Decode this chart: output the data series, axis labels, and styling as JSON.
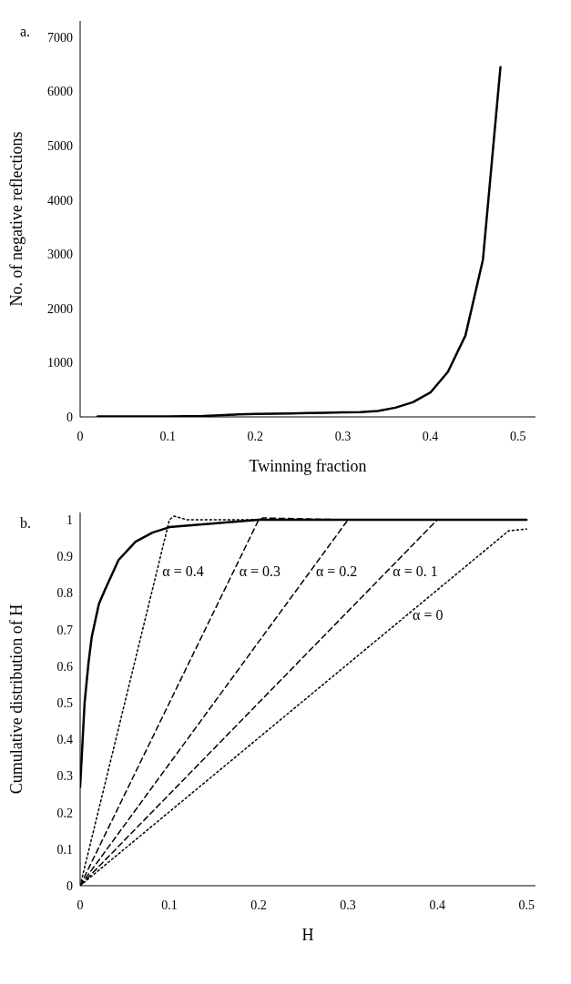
{
  "chart_data": [
    {
      "type": "line",
      "annotations": [
        "a."
      ],
      "xlabel": "Twinning fraction",
      "ylabel": "No. of negative reflections",
      "x": [
        0.02,
        0.04,
        0.06,
        0.08,
        0.1,
        0.12,
        0.14,
        0.16,
        0.18,
        0.2,
        0.22,
        0.24,
        0.26,
        0.28,
        0.3,
        0.32,
        0.34,
        0.36,
        0.38,
        0.4,
        0.42,
        0.44,
        0.46,
        0.48
      ],
      "values": [
        10,
        10,
        10,
        10,
        10,
        12,
        15,
        30,
        45,
        55,
        60,
        65,
        70,
        75,
        85,
        90,
        110,
        170,
        270,
        450,
        830,
        1500,
        2900,
        6450
      ],
      "color": "#000000",
      "xlim": [
        0,
        0.52
      ],
      "xticks": [
        0,
        0.1,
        0.2,
        0.3,
        0.4,
        0.5
      ],
      "ylim": [
        0,
        7300
      ],
      "yticks": [
        0,
        1000,
        2000,
        3000,
        4000,
        5000,
        6000,
        7000
      ],
      "grid": false,
      "line_style": "solid"
    },
    {
      "type": "line",
      "annotations": [
        "b."
      ],
      "xlabel": "H",
      "ylabel": "Cumulative distribution of H",
      "series": [
        {
          "color": "#000000",
          "line_style": "solid",
          "x": [
            0,
            0.005,
            0.0094,
            0.013,
            0.021,
            0.028,
            0.043,
            0.062,
            0.081,
            0.1,
            0.15,
            0.2,
            0.5
          ],
          "values": [
            0.27,
            0.5,
            0.61,
            0.68,
            0.77,
            0.81,
            0.89,
            0.94,
            0.965,
            0.98,
            0.99,
            1,
            1
          ]
        },
        {
          "name": "α = 0.4",
          "color": "#000000",
          "line_style": "dotted",
          "x": [
            0,
            0.1,
            0.105,
            0.12,
            0.2
          ],
          "values": [
            0,
            1,
            1.01,
            1,
            1
          ]
        },
        {
          "name": "α = 0.3",
          "color": "#000000",
          "line_style": "dashed",
          "x": [
            0,
            0.2,
            0.205,
            0.3
          ],
          "values": [
            0,
            1,
            1.005,
            1
          ]
        },
        {
          "name": "α = 0.2",
          "color": "#000000",
          "line_style": "dashed",
          "x": [
            0,
            0.3,
            0.4
          ],
          "values": [
            0,
            1,
            1
          ]
        },
        {
          "name": "α = 0. 1",
          "color": "#000000",
          "line_style": "dashed",
          "x": [
            0,
            0.4
          ],
          "values": [
            0,
            1
          ]
        },
        {
          "name": "α = 0",
          "color": "#000000",
          "line_style": "dotted",
          "x": [
            0,
            0.48,
            0.5
          ],
          "values": [
            0,
            0.97,
            0.975
          ]
        }
      ],
      "xlim": [
        0,
        0.51
      ],
      "xticks": [
        0,
        0.1,
        0.2,
        0.3,
        0.4,
        0.5
      ],
      "ylim": [
        0,
        1.02
      ],
      "yticks": [
        0,
        0.1,
        0.2,
        0.3,
        0.4,
        0.5,
        0.6,
        0.7,
        0.8,
        0.9,
        1
      ],
      "grid": false
    }
  ]
}
